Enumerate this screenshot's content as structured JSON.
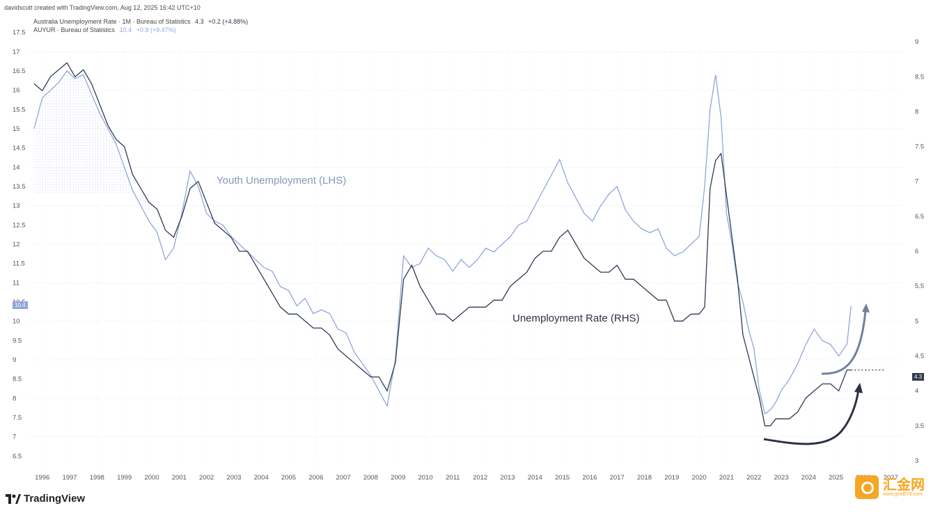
{
  "header": {
    "credit": "davidscutt created with TradingView.com, Aug 12, 2025 16:42 UTC+10"
  },
  "legend": [
    {
      "name": "Australia Unemployment Rate · 1M · Bureau of Statistics",
      "value": "4.3",
      "change": "+0.2 (+4.88%)",
      "color": "#2f3a4f"
    },
    {
      "name": "AUYUR · Bureau of Statistics",
      "value": "10.4",
      "change": "+0.9 (+9.47%)",
      "color": "#8fa6d9"
    }
  ],
  "price_tags": {
    "left": "10.4",
    "right": "4.3"
  },
  "logo": "TradingView",
  "watermark": {
    "main": "汇金网",
    "sub": "www.gold678.com"
  },
  "colors": {
    "youth": "#8fa6d9",
    "unemp": "#2f3a4f",
    "youth_fill": "#c9d3ee"
  },
  "chart_data": {
    "type": "line",
    "x_ticks": [
      "1996",
      "1997",
      "1998",
      "1999",
      "2000",
      "2001",
      "2002",
      "2003",
      "2004",
      "2005",
      "2006",
      "2007",
      "2008",
      "2009",
      "2010",
      "2011",
      "2012",
      "2013",
      "2014",
      "2015",
      "2016",
      "2017",
      "2018",
      "2019",
      "2020",
      "2021",
      "2022",
      "2023",
      "2024",
      "2025",
      "2026",
      "2027"
    ],
    "left_ticks": [
      "17.5",
      "17",
      "16.5",
      "16",
      "15.5",
      "15",
      "14.5",
      "14",
      "13.5",
      "13",
      "12.5",
      "12",
      "11.5",
      "11",
      "10.5",
      "10",
      "9.5",
      "9",
      "8.5",
      "8",
      "7.5",
      "7",
      "6.5"
    ],
    "right_ticks": [
      "9",
      "8.5",
      "8",
      "7.5",
      "7",
      "6.5",
      "6",
      "5.5",
      "5",
      "4.5",
      "4",
      "3.5",
      "3"
    ],
    "left_ylim": [
      6.2,
      17.8
    ],
    "right_ylim": [
      2.9,
      9.3
    ],
    "xlim": [
      1995.6,
      2027.4
    ],
    "annotations": [
      "Youth Unemployment (LHS)",
      "Unemployment Rate (RHS)"
    ],
    "series": [
      {
        "name": "Australia Unemployment Rate",
        "axis": "right",
        "x": [
          1995.7,
          1996.0,
          1996.3,
          1996.6,
          1996.9,
          1997.2,
          1997.5,
          1997.8,
          1998.1,
          1998.4,
          1998.7,
          1999.0,
          1999.3,
          1999.6,
          1999.9,
          2000.2,
          2000.5,
          2000.8,
          2001.1,
          2001.4,
          2001.7,
          2002.0,
          2002.3,
          2002.6,
          2002.9,
          2003.2,
          2003.5,
          2003.8,
          2004.1,
          2004.4,
          2004.7,
          2005.0,
          2005.3,
          2005.6,
          2005.9,
          2006.2,
          2006.5,
          2006.8,
          2007.1,
          2007.4,
          2007.7,
          2008.0,
          2008.3,
          2008.6,
          2008.9,
          2009.2,
          2009.5,
          2009.8,
          2010.1,
          2010.4,
          2010.7,
          2011.0,
          2011.3,
          2011.6,
          2011.9,
          2012.2,
          2012.5,
          2012.8,
          2013.1,
          2013.4,
          2013.7,
          2014.0,
          2014.3,
          2014.6,
          2014.9,
          2015.2,
          2015.5,
          2015.8,
          2016.1,
          2016.4,
          2016.7,
          2017.0,
          2017.3,
          2017.6,
          2017.9,
          2018.2,
          2018.5,
          2018.8,
          2019.1,
          2019.4,
          2019.7,
          2020.0,
          2020.2,
          2020.4,
          2020.6,
          2020.8,
          2021.0,
          2021.2,
          2021.4,
          2021.6,
          2021.8,
          2022.0,
          2022.2,
          2022.4,
          2022.6,
          2022.8,
          2023.0,
          2023.3,
          2023.6,
          2023.9,
          2024.2,
          2024.5,
          2024.8,
          2025.1,
          2025.4,
          2025.55
        ],
        "values": [
          8.4,
          8.3,
          8.5,
          8.6,
          8.7,
          8.5,
          8.6,
          8.4,
          8.1,
          7.8,
          7.6,
          7.5,
          7.1,
          6.9,
          6.7,
          6.6,
          6.3,
          6.2,
          6.5,
          6.9,
          7.0,
          6.7,
          6.4,
          6.3,
          6.2,
          6.0,
          6.0,
          5.8,
          5.6,
          5.4,
          5.2,
          5.1,
          5.1,
          5.0,
          4.9,
          4.9,
          4.8,
          4.6,
          4.5,
          4.4,
          4.3,
          4.2,
          4.2,
          4.0,
          4.4,
          5.6,
          5.8,
          5.5,
          5.3,
          5.1,
          5.1,
          5.0,
          5.1,
          5.2,
          5.2,
          5.2,
          5.3,
          5.3,
          5.5,
          5.6,
          5.7,
          5.9,
          6.0,
          6.0,
          6.2,
          6.3,
          6.1,
          5.9,
          5.8,
          5.7,
          5.7,
          5.8,
          5.6,
          5.6,
          5.5,
          5.4,
          5.3,
          5.3,
          5.0,
          5.0,
          5.1,
          5.1,
          5.2,
          6.9,
          7.3,
          7.4,
          6.8,
          6.2,
          5.6,
          4.8,
          4.5,
          4.2,
          3.9,
          3.5,
          3.5,
          3.6,
          3.6,
          3.6,
          3.7,
          3.9,
          4.0,
          4.1,
          4.1,
          4.0,
          4.3,
          4.3
        ]
      },
      {
        "name": "AUYUR",
        "axis": "left",
        "x": [
          1995.7,
          1996.0,
          1996.3,
          1996.6,
          1996.9,
          1997.2,
          1997.5,
          1997.8,
          1998.1,
          1998.4,
          1998.7,
          1999.0,
          1999.3,
          1999.6,
          1999.9,
          2000.2,
          2000.5,
          2000.8,
          2001.1,
          2001.4,
          2001.7,
          2002.0,
          2002.3,
          2002.6,
          2002.9,
          2003.2,
          2003.5,
          2003.8,
          2004.1,
          2004.4,
          2004.7,
          2005.0,
          2005.3,
          2005.6,
          2005.9,
          2006.2,
          2006.5,
          2006.8,
          2007.1,
          2007.4,
          2007.7,
          2008.0,
          2008.3,
          2008.6,
          2008.9,
          2009.2,
          2009.5,
          2009.8,
          2010.1,
          2010.4,
          2010.7,
          2011.0,
          2011.3,
          2011.6,
          2011.9,
          2012.2,
          2012.5,
          2012.8,
          2013.1,
          2013.4,
          2013.7,
          2014.0,
          2014.3,
          2014.6,
          2014.9,
          2015.2,
          2015.5,
          2015.8,
          2016.1,
          2016.4,
          2016.7,
          2017.0,
          2017.3,
          2017.6,
          2017.9,
          2018.2,
          2018.5,
          2018.8,
          2019.1,
          2019.4,
          2019.7,
          2020.0,
          2020.2,
          2020.4,
          2020.6,
          2020.8,
          2021.0,
          2021.2,
          2021.4,
          2021.6,
          2021.8,
          2022.0,
          2022.2,
          2022.4,
          2022.6,
          2022.8,
          2023.0,
          2023.3,
          2023.6,
          2023.9,
          2024.2,
          2024.5,
          2024.8,
          2025.1,
          2025.4,
          2025.55
        ],
        "values": [
          15.0,
          15.8,
          16.0,
          16.2,
          16.5,
          16.3,
          16.4,
          15.9,
          15.4,
          15.0,
          14.6,
          14.0,
          13.4,
          13.0,
          12.6,
          12.3,
          11.6,
          11.9,
          12.8,
          13.9,
          13.5,
          12.8,
          12.6,
          12.5,
          12.2,
          12.0,
          11.8,
          11.6,
          11.4,
          11.3,
          10.9,
          10.8,
          10.4,
          10.6,
          10.2,
          10.3,
          10.2,
          9.8,
          9.7,
          9.2,
          8.9,
          8.6,
          8.2,
          7.8,
          9.0,
          11.7,
          11.4,
          11.5,
          11.9,
          11.7,
          11.6,
          11.3,
          11.6,
          11.4,
          11.6,
          11.9,
          11.8,
          12.0,
          12.2,
          12.5,
          12.6,
          13.0,
          13.4,
          13.8,
          14.2,
          13.6,
          13.2,
          12.8,
          12.6,
          13.0,
          13.3,
          13.5,
          12.9,
          12.6,
          12.4,
          12.3,
          12.4,
          11.9,
          11.7,
          11.8,
          12.0,
          12.2,
          13.5,
          15.5,
          16.4,
          15.3,
          12.8,
          12.0,
          11.0,
          10.5,
          9.8,
          9.3,
          8.2,
          7.6,
          7.7,
          7.9,
          8.2,
          8.5,
          8.9,
          9.4,
          9.8,
          9.5,
          9.4,
          9.1,
          9.4,
          10.4
        ]
      }
    ]
  }
}
